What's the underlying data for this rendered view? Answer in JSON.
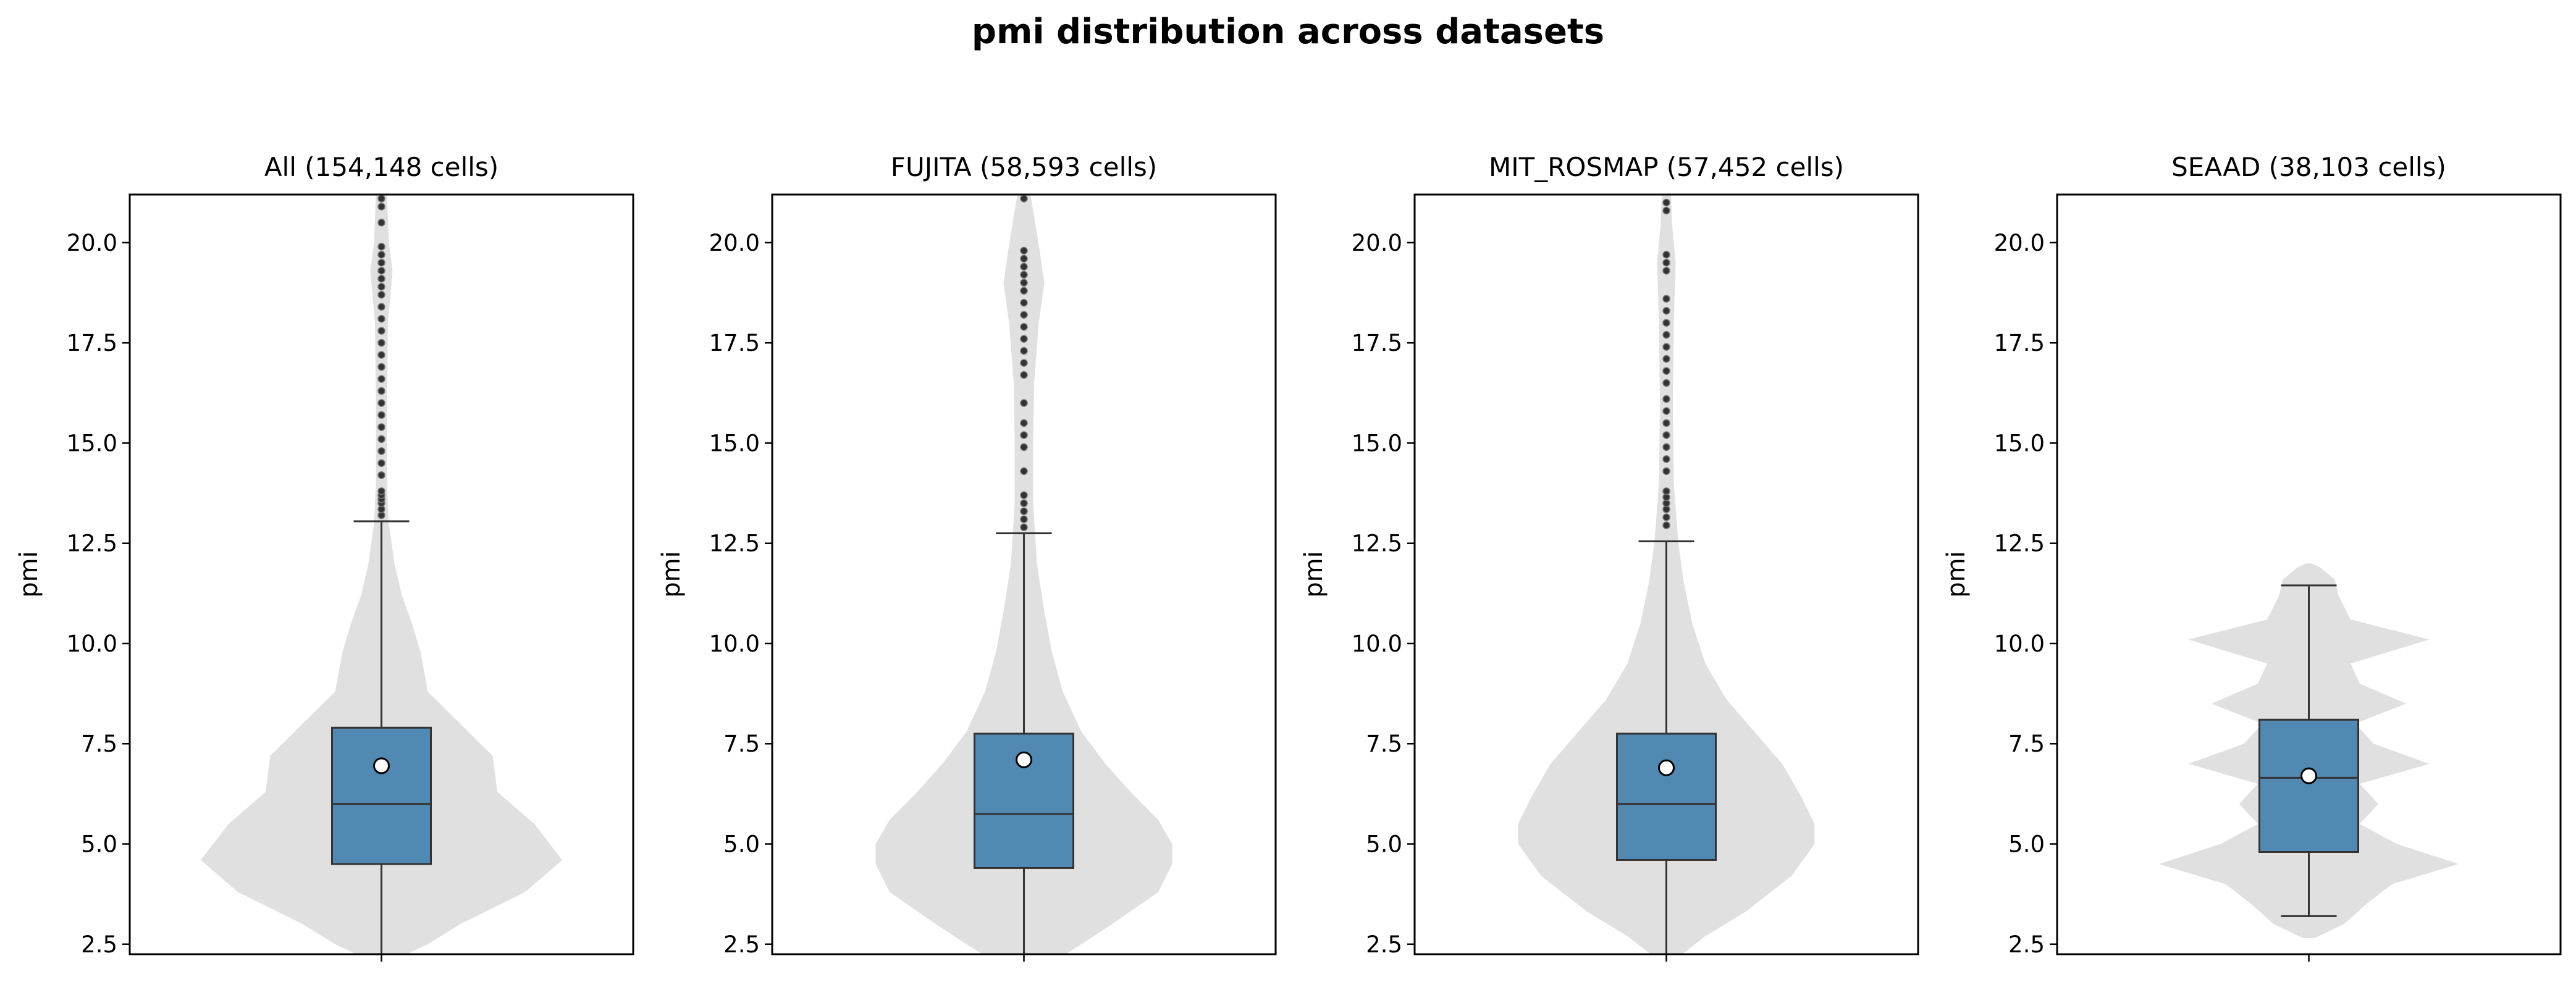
{
  "figure": {
    "suptitle": "pmi distribution across datasets"
  },
  "chart_data": [
    {
      "type": "violin+box",
      "title": "All (154,148 cells)",
      "xlabel": "",
      "ylabel": "pmi",
      "ylim": [
        2.25,
        21.2
      ],
      "yticks": [
        "2.5",
        "5.0",
        "7.5",
        "10.0",
        "12.5",
        "15.0",
        "17.5",
        "20.0"
      ],
      "box": {
        "q1": 4.5,
        "median": 6.0,
        "q3": 7.9,
        "whisker_low": 2.25,
        "whisker_high": 13.05,
        "mean": 6.95
      },
      "violin": [
        [
          2.25,
          0.27
        ],
        [
          2.5,
          0.5
        ],
        [
          3.0,
          0.85
        ],
        [
          3.8,
          1.55
        ],
        [
          4.6,
          1.95
        ],
        [
          5.5,
          1.65
        ],
        [
          6.3,
          1.25
        ],
        [
          7.2,
          1.2
        ],
        [
          8.0,
          0.85
        ],
        [
          8.8,
          0.5
        ],
        [
          9.8,
          0.42
        ],
        [
          10.5,
          0.33
        ],
        [
          11.2,
          0.22
        ],
        [
          12.0,
          0.14
        ],
        [
          13.0,
          0.08
        ],
        [
          14.0,
          0.06
        ],
        [
          16.0,
          0.06
        ],
        [
          18.0,
          0.07
        ],
        [
          19.3,
          0.12
        ],
        [
          20.0,
          0.08
        ],
        [
          21.2,
          0.06
        ]
      ],
      "outliers": [
        13.2,
        13.35,
        13.5,
        13.6,
        13.7,
        13.8,
        14.2,
        14.5,
        14.8,
        15.1,
        15.4,
        15.7,
        16.0,
        16.3,
        16.6,
        16.9,
        17.2,
        17.5,
        17.8,
        18.1,
        18.4,
        18.7,
        18.9,
        19.1,
        19.3,
        19.5,
        19.7,
        19.9,
        20.5,
        20.9,
        21.1
      ]
    },
    {
      "type": "violin+box",
      "title": "FUJITA (58,593 cells)",
      "xlabel": "",
      "ylabel": "pmi",
      "ylim": [
        2.25,
        21.2
      ],
      "yticks": [
        "2.5",
        "5.0",
        "7.5",
        "10.0",
        "12.5",
        "15.0",
        "17.5",
        "20.0"
      ],
      "box": {
        "q1": 4.4,
        "median": 5.75,
        "q3": 7.75,
        "whisker_low": 2.25,
        "whisker_high": 12.75,
        "mean": 7.1
      },
      "violin": [
        [
          2.25,
          0.45
        ],
        [
          2.5,
          0.62
        ],
        [
          3.0,
          0.95
        ],
        [
          3.8,
          1.45
        ],
        [
          4.5,
          1.6
        ],
        [
          5.0,
          1.6
        ],
        [
          5.6,
          1.45
        ],
        [
          6.3,
          1.15
        ],
        [
          7.0,
          0.88
        ],
        [
          7.8,
          0.62
        ],
        [
          8.8,
          0.42
        ],
        [
          9.8,
          0.3
        ],
        [
          10.8,
          0.22
        ],
        [
          12.0,
          0.14
        ],
        [
          13.5,
          0.1
        ],
        [
          15.0,
          0.1
        ],
        [
          16.5,
          0.11
        ],
        [
          18.0,
          0.16
        ],
        [
          19.0,
          0.22
        ],
        [
          19.8,
          0.17
        ],
        [
          20.8,
          0.1
        ],
        [
          21.2,
          0.07
        ]
      ],
      "outliers": [
        12.9,
        13.1,
        13.3,
        13.5,
        13.7,
        14.3,
        14.9,
        15.2,
        15.5,
        16.0,
        16.7,
        17.0,
        17.3,
        17.6,
        17.9,
        18.2,
        18.5,
        18.8,
        19.0,
        19.2,
        19.4,
        19.6,
        19.8,
        21.1
      ]
    },
    {
      "type": "violin+box",
      "title": "MIT_ROSMAP (57,452 cells)",
      "xlabel": "",
      "ylabel": "pmi",
      "ylim": [
        2.25,
        21.2
      ],
      "yticks": [
        "2.5",
        "5.0",
        "7.5",
        "10.0",
        "12.5",
        "15.0",
        "17.5",
        "20.0"
      ],
      "box": {
        "q1": 4.6,
        "median": 6.0,
        "q3": 7.75,
        "whisker_low": 2.25,
        "whisker_high": 12.55,
        "mean": 6.9
      },
      "violin": [
        [
          2.25,
          0.17
        ],
        [
          2.7,
          0.42
        ],
        [
          3.3,
          0.85
        ],
        [
          4.2,
          1.35
        ],
        [
          5.0,
          1.6
        ],
        [
          5.5,
          1.6
        ],
        [
          6.2,
          1.45
        ],
        [
          7.0,
          1.25
        ],
        [
          7.8,
          0.95
        ],
        [
          8.6,
          0.65
        ],
        [
          9.5,
          0.42
        ],
        [
          10.5,
          0.28
        ],
        [
          11.5,
          0.19
        ],
        [
          12.5,
          0.13
        ],
        [
          14.0,
          0.08
        ],
        [
          16.0,
          0.07
        ],
        [
          18.0,
          0.08
        ],
        [
          19.5,
          0.1
        ],
        [
          20.5,
          0.06
        ],
        [
          21.2,
          0.05
        ]
      ],
      "outliers": [
        12.95,
        13.15,
        13.35,
        13.5,
        13.65,
        13.8,
        14.3,
        14.6,
        14.9,
        15.2,
        15.5,
        15.8,
        16.1,
        16.5,
        16.8,
        17.1,
        17.4,
        17.7,
        18.0,
        18.3,
        18.6,
        19.3,
        19.5,
        19.7,
        20.8,
        21.0
      ]
    },
    {
      "type": "violin+box",
      "title": "SEAAD (38,103 cells)",
      "xlabel": "",
      "ylabel": "pmi",
      "ylim": [
        2.25,
        21.2
      ],
      "yticks": [
        "2.5",
        "5.0",
        "7.5",
        "10.0",
        "12.5",
        "15.0",
        "17.5",
        "20.0"
      ],
      "box": {
        "q1": 4.8,
        "median": 6.65,
        "q3": 8.1,
        "whisker_low": 3.2,
        "whisker_high": 11.45,
        "mean": 6.7
      },
      "violin": [
        [
          2.65,
          0.06
        ],
        [
          3.0,
          0.38
        ],
        [
          3.5,
          0.62
        ],
        [
          4.0,
          0.9
        ],
        [
          4.5,
          1.62
        ],
        [
          5.0,
          0.95
        ],
        [
          5.5,
          0.55
        ],
        [
          6.0,
          0.75
        ],
        [
          6.5,
          0.55
        ],
        [
          7.0,
          1.3
        ],
        [
          7.5,
          0.7
        ],
        [
          8.0,
          0.5
        ],
        [
          8.5,
          1.05
        ],
        [
          9.0,
          0.55
        ],
        [
          9.5,
          0.45
        ],
        [
          10.1,
          1.3
        ],
        [
          10.6,
          0.45
        ],
        [
          11.2,
          0.32
        ],
        [
          11.6,
          0.28
        ],
        [
          11.9,
          0.12
        ],
        [
          12.0,
          0.03
        ]
      ],
      "outliers": []
    }
  ],
  "style": {
    "violin_color": "#e0e0e0",
    "box_color": "#5189b3",
    "line_color": "#333333",
    "mean_marker_fill": "#ffffff",
    "outlier_color": "#333333"
  }
}
